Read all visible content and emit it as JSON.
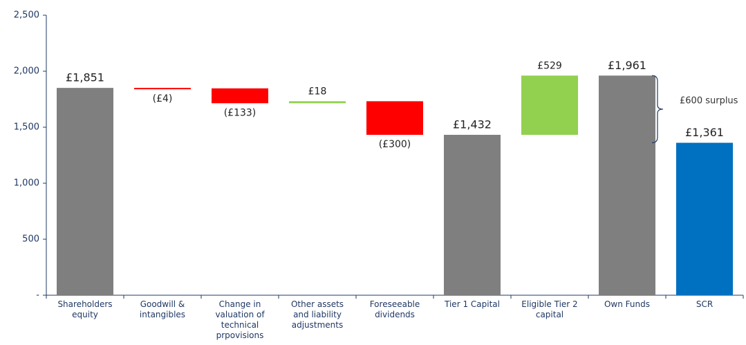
{
  "chart_data": {
    "type": "waterfall",
    "categories": [
      "Shareholders equity",
      "Goodwill & intangibles",
      "Change in valuation of technical prpovisions",
      "Other assets and liability adjustments",
      "Foreseeable dividends",
      "Tier 1 Capital",
      "Eligible Tier 2 capital",
      "Own Funds",
      "SCR"
    ],
    "values": [
      1851,
      -4,
      -133,
      18,
      -300,
      1432,
      529,
      1961,
      1361
    ],
    "value_labels": [
      "£1,851",
      "(£4)",
      "(£133)",
      "£18",
      "(£300)",
      "£1,432",
      "£529",
      "£1,961",
      "£1,361"
    ],
    "measure": [
      "absolute",
      "relative",
      "relative",
      "relative",
      "relative",
      "absolute",
      "relative",
      "absolute",
      "absolute"
    ],
    "colors": [
      "#7f7f7f",
      "#ff0000",
      "#ff0000",
      "#92d050",
      "#ff0000",
      "#7f7f7f",
      "#92d050",
      "#7f7f7f",
      "#0070c0"
    ],
    "ylim": [
      0,
      2500
    ],
    "yticks": [
      {
        "value": 0,
        "label": "-"
      },
      500,
      {
        "value": 1000,
        "label": "1,000"
      },
      {
        "value": 1500,
        "label": "1,500"
      },
      {
        "value": 2000,
        "label": "2,000"
      },
      {
        "value": 2500,
        "label": "2,500"
      }
    ],
    "annotations": [
      "£600 surplus"
    ],
    "grid": false
  }
}
